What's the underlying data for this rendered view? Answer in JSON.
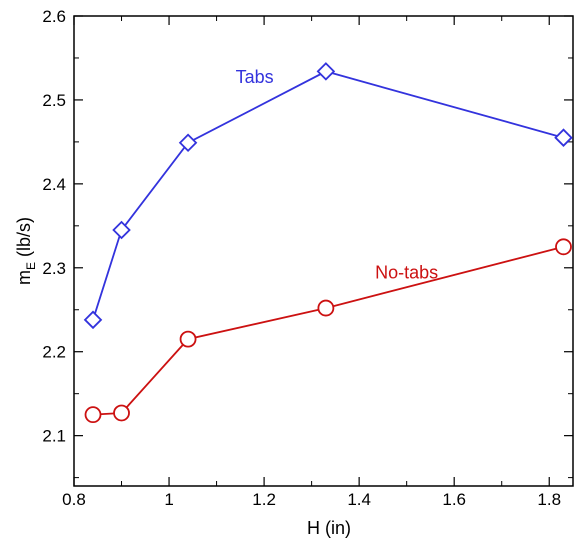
{
  "chart_data": {
    "type": "line",
    "xlabel": "H (in)",
    "ylabel_main": "m",
    "ylabel_sub": "E",
    "ylabel_unit": " (lb/s)",
    "xlim": [
      0.8,
      1.85
    ],
    "ylim": [
      2.04,
      2.6
    ],
    "x_ticks": [
      0.8,
      1.0,
      1.2,
      1.4,
      1.6,
      1.8
    ],
    "x_tick_labels": [
      "0.8",
      "1",
      "1.2",
      "1.4",
      "1.6",
      "1.8"
    ],
    "x_minor_ticks": [
      0.9,
      1.1,
      1.3,
      1.5,
      1.7
    ],
    "y_ticks": [
      2.1,
      2.2,
      2.3,
      2.4,
      2.5,
      2.6
    ],
    "y_tick_labels": [
      "2.1",
      "2.2",
      "2.3",
      "2.4",
      "2.5",
      "2.6"
    ],
    "y_minor_ticks": [
      2.05,
      2.15,
      2.25,
      2.35,
      2.45,
      2.55
    ],
    "grid": false,
    "legend": "none",
    "series": [
      {
        "name": "Tabs",
        "color": "#3333dd",
        "marker": "diamond",
        "x": [
          0.84,
          0.9,
          1.04,
          1.33,
          1.83
        ],
        "y": [
          2.238,
          2.345,
          2.449,
          2.534,
          2.455
        ],
        "label_at": [
          1.18,
          2.52
        ]
      },
      {
        "name": "No-tabs",
        "color": "#cc1111",
        "marker": "circle",
        "x": [
          0.84,
          0.9,
          1.04,
          1.33,
          1.83
        ],
        "y": [
          2.125,
          2.127,
          2.215,
          2.252,
          2.325
        ],
        "label_at": [
          1.5,
          2.287
        ]
      }
    ]
  }
}
